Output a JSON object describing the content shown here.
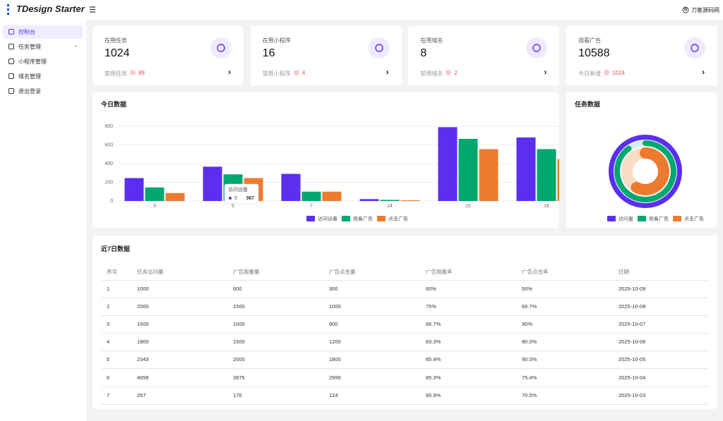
{
  "header": {
    "logo": "TDesign Starter",
    "user": "刀客源码网"
  },
  "menu": [
    {
      "label": "控制台",
      "active": true
    },
    {
      "label": "任务管理",
      "expandable": true
    },
    {
      "label": "小程序管理"
    },
    {
      "label": "域名管理"
    },
    {
      "label": "退出登录"
    }
  ],
  "stats": [
    {
      "title": "在用任务",
      "value": 1024,
      "sub_label": "禁用任务",
      "sub_value": 88
    },
    {
      "title": "在用小程序",
      "value": 16,
      "sub_label": "禁用小程序",
      "sub_value": 4
    },
    {
      "title": "在用域名",
      "value": 8,
      "sub_label": "禁用域名",
      "sub_value": 2
    },
    {
      "title": "观看广告",
      "value": 10588,
      "sub_label": "今日新增",
      "sub_value": 1024
    }
  ],
  "chart_data": [
    {
      "type": "bar",
      "title": "今日数据",
      "categories": [
        "3",
        "5",
        "7",
        "14",
        "15",
        "16"
      ],
      "series": [
        {
          "name": "访问设备",
          "color": "#5b2ef0",
          "values": [
            245,
            367,
            290,
            20,
            790,
            680
          ]
        },
        {
          "name": "观看广告",
          "color": "#00a870",
          "values": [
            145,
            285,
            100,
            12,
            665,
            555
          ]
        },
        {
          "name": "点击广告",
          "color": "#ed7b2f",
          "values": [
            85,
            245,
            100,
            8,
            555,
            450
          ]
        }
      ],
      "ylim": [
        0,
        800
      ],
      "yticks": [
        0,
        200,
        400,
        600,
        800
      ],
      "grid": true,
      "tooltip": {
        "series": 0,
        "index": 1
      }
    },
    {
      "type": "radial-bar",
      "title": "任务数据",
      "series": [
        {
          "name": "访问量",
          "color": "#5b2ef0",
          "value": 100
        },
        {
          "name": "观看广告",
          "color": "#00a870",
          "value": 90
        },
        {
          "name": "点击广告",
          "color": "#ed7b2f",
          "value": 58
        }
      ],
      "rlim": [
        0,
        100
      ]
    }
  ],
  "table": {
    "title": "近7日数据",
    "columns": [
      "序号",
      "任务访问量",
      "广告观看量",
      "广告点击量",
      "广告观看率",
      "广告点击率",
      "日期"
    ],
    "rows": [
      [
        "1",
        "1000",
        "600",
        "300",
        "60%",
        "50%",
        "2025-10-09"
      ],
      [
        "2",
        "2000",
        "1500",
        "1000",
        "75%",
        "66.7%",
        "2025-10-08"
      ],
      [
        "3",
        "1500",
        "1000",
        "900",
        "66.7%",
        "90%",
        "2025-10-07"
      ],
      [
        "4",
        "1800",
        "1500",
        "1200",
        "83.3%",
        "80.0%",
        "2025-10-06"
      ],
      [
        "5",
        "2343",
        "2000",
        "1800",
        "85.4%",
        "90.0%",
        "2025-10-05"
      ],
      [
        "6",
        "4658",
        "3975",
        "2999",
        "85.3%",
        "75.4%",
        "2025-10-04"
      ],
      [
        "7",
        "267",
        "176",
        "124",
        "65.9%",
        "70.5%",
        "2025-10-03"
      ]
    ]
  }
}
